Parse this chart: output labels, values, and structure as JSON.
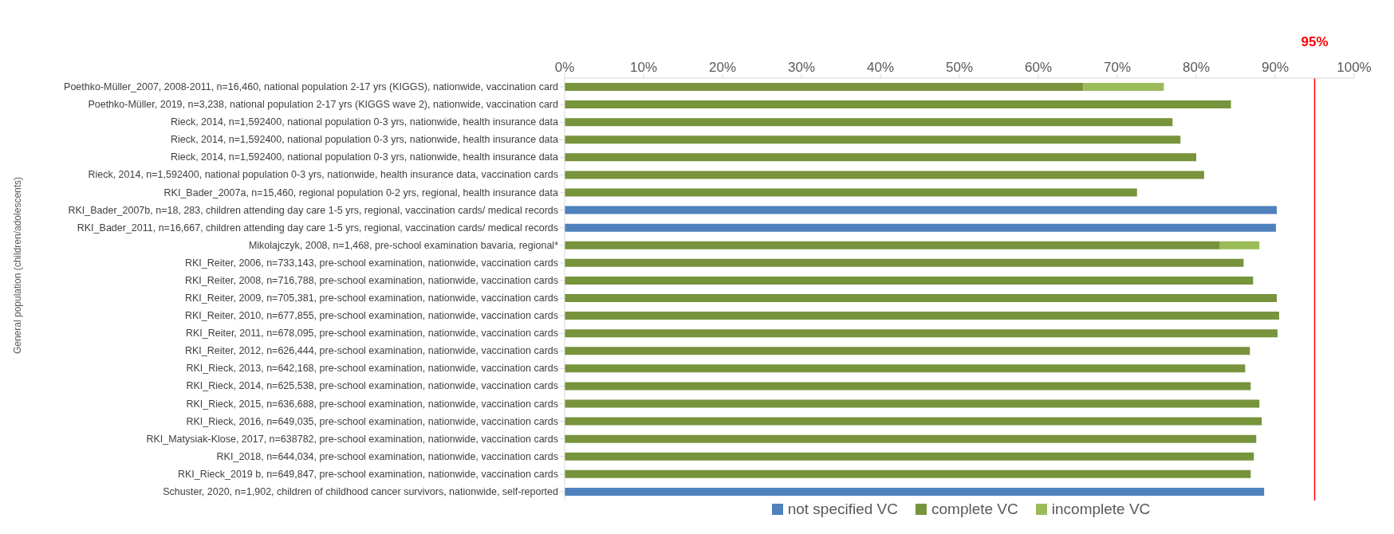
{
  "chart_data": {
    "type": "bar",
    "orientation": "horizontal",
    "stacked": true,
    "ylabel": "General population (children/adolescents)",
    "categories": [
      "Poethko-Müller_2007, 2008-2011, n=16,460, national population 2-17 yrs (KIGGS), nationwide, vaccination card",
      "Poethko-Müller, 2019, n=3,238, national population 2-17 yrs (KIGGS wave 2), nationwide, vaccination card",
      "Rieck, 2014, n=1,592400, national population 0-3 yrs, nationwide, health insurance data",
      "Rieck, 2014, n=1,592400, national population 0-3 yrs, nationwide, health insurance data",
      "Rieck, 2014, n=1,592400, national population 0-3 yrs, nationwide, health insurance data",
      "Rieck, 2014, n=1,592400, national population 0-3 yrs, nationwide, health insurance data, vaccination cards",
      "RKI_Bader_2007a, n=15,460, regional population 0-2 yrs, regional, health insurance data",
      "RKI_Bader_2007b, n=18, 283, children attending day care 1-5 yrs, regional, vaccination cards/ medical records",
      "RKI_Bader_2011, n=16,667,  children attending day care 1-5 yrs, regional, vaccination cards/ medical records",
      "Mikolajczyk, 2008, n=1,468, pre-school examination bavaria, regional*",
      "RKI_Reiter, 2006, n=733,143, pre-school examination, nationwide, vaccination cards",
      "RKI_Reiter, 2008, n=716,788, pre-school examination, nationwide, vaccination cards",
      "RKI_Reiter, 2009, n=705,381, pre-school examination, nationwide, vaccination cards",
      "RKI_Reiter, 2010, n=677,855, pre-school examination, nationwide, vaccination cards",
      "RKI_Reiter, 2011, n=678,095, pre-school examination, nationwide, vaccination cards",
      "RKI_Reiter, 2012, n=626,444, pre-school examination, nationwide, vaccination cards",
      "RKI_Rieck, 2013, n=642,168, pre-school examination, nationwide, vaccination cards",
      "RKI_Rieck, 2014, n=625,538, pre-school examination, nationwide, vaccination cards",
      "RKI_Rieck, 2015, n=636,688, pre-school examination, nationwide, vaccination cards",
      "RKI_Rieck, 2016, n=649,035, pre-school examination, nationwide, vaccination cards",
      "RKI_Matysiak-Klose, 2017, n=638782, pre-school examination, nationwide, vaccination cards",
      "RKI_2018, n=644,034, pre-school examination, nationwide, vaccination cards",
      "RKI_Rieck_2019 b, n=649,847, pre-school examination, nationwide, vaccination cards",
      "Schuster, 2020, n=1,902, children of childhood cancer survivors, nationwide, self-reported"
    ],
    "series": [
      {
        "name": "not specified VC",
        "color": "#4f81bd",
        "values": [
          null,
          null,
          null,
          null,
          null,
          null,
          null,
          90.2,
          90.1,
          null,
          null,
          null,
          null,
          null,
          null,
          null,
          null,
          null,
          null,
          null,
          null,
          null,
          null,
          88.6
        ]
      },
      {
        "name": "complete VC",
        "color": "#77933c",
        "values": [
          65.7,
          84.4,
          77.0,
          78.0,
          80.0,
          81.0,
          72.5,
          null,
          null,
          83.0,
          86.0,
          87.2,
          90.2,
          90.5,
          90.3,
          86.8,
          86.2,
          86.9,
          88.0,
          88.3,
          87.6,
          87.3,
          86.9,
          null
        ]
      },
      {
        "name": "incomplete VC",
        "color": "#9bbb59",
        "values": [
          10.2,
          null,
          null,
          null,
          null,
          null,
          null,
          null,
          null,
          5.0,
          null,
          null,
          null,
          null,
          null,
          null,
          null,
          null,
          null,
          null,
          null,
          null,
          null,
          null
        ]
      }
    ],
    "xlim": [
      0,
      100
    ],
    "xticks": [
      {
        "value": 0,
        "label": "0%"
      },
      {
        "value": 10,
        "label": "10%"
      },
      {
        "value": 20,
        "label": "20%"
      },
      {
        "value": 30,
        "label": "30%"
      },
      {
        "value": 40,
        "label": "40%"
      },
      {
        "value": 50,
        "label": "50%"
      },
      {
        "value": 60,
        "label": "60%"
      },
      {
        "value": 70,
        "label": "70%"
      },
      {
        "value": 80,
        "label": "80%"
      },
      {
        "value": 90,
        "label": "90%"
      },
      {
        "value": 100,
        "label": "100%"
      }
    ],
    "ref_lines": [
      {
        "axis": "x",
        "value": 95,
        "label": "95%",
        "color": "#ff0000"
      }
    ],
    "legend": "bottom",
    "grid": false
  }
}
